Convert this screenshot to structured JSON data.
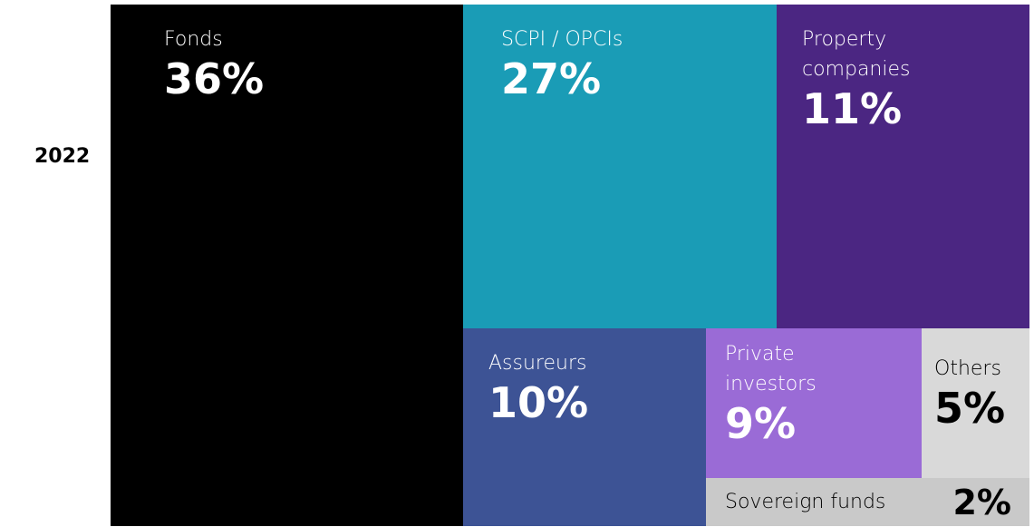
{
  "chart_data": {
    "type": "treemap",
    "year": "2022",
    "categories": [
      "Fonds",
      "SCPI / OPCIs",
      "Property companies",
      "Assureurs",
      "Private investors",
      "Others",
      "Sovereign funds"
    ],
    "values": [
      36,
      27,
      11,
      10,
      9,
      5,
      2
    ],
    "value_labels": [
      "36%",
      "27%",
      "11%",
      "10%",
      "9%",
      "5%",
      "2%"
    ],
    "colors": [
      "#000000",
      "#1a9cb6",
      "#4b2682",
      "#3d5395",
      "#9a6bd6",
      "#d9d9d9",
      "#c9c9c9"
    ]
  }
}
